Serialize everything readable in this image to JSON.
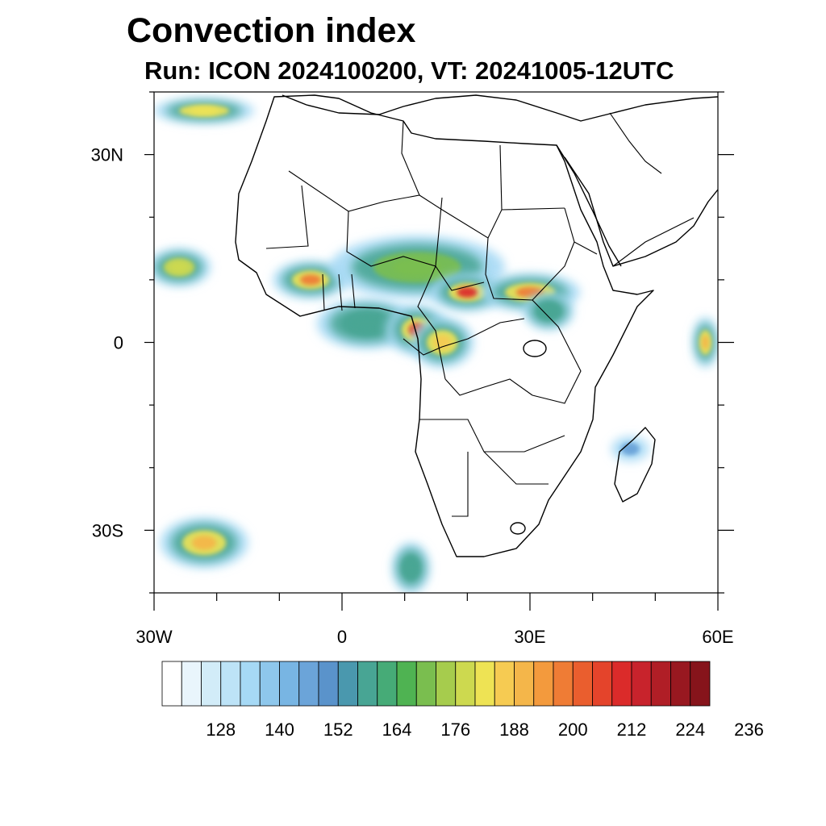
{
  "title": "Convection index",
  "subtitle": "Run: ICON 2024100200,  VT: 20241005-12UTC",
  "map": {
    "region": "Africa",
    "lon_range": [
      -30,
      60
    ],
    "lat_range": [
      -40,
      40
    ],
    "lat_ticks": [
      {
        "value": 30,
        "label": "30N"
      },
      {
        "value": 0,
        "label": "0"
      },
      {
        "value": -30,
        "label": "30S"
      }
    ],
    "lon_ticks": [
      {
        "value": -30,
        "label": "30W"
      },
      {
        "value": 0,
        "label": "0"
      },
      {
        "value": 30,
        "label": "30E"
      },
      {
        "value": 60,
        "label": "60E"
      }
    ],
    "minor_lat_ticks": [
      40,
      20,
      10,
      -10,
      -20,
      -40
    ],
    "minor_lon_ticks": [
      -20,
      -10,
      10,
      20,
      40,
      50
    ],
    "convection_areas": [
      {
        "name": "west-africa-core",
        "lon": -5,
        "lat": 10,
        "rlon": 6,
        "rlat": 3,
        "level": 190
      },
      {
        "name": "sahel-band",
        "lon": 12,
        "lat": 12,
        "rlon": 14,
        "rlat": 5,
        "level": 165
      },
      {
        "name": "gulf-of-guinea",
        "lon": 4,
        "lat": 3,
        "rlon": 8,
        "rlat": 4,
        "level": 150
      },
      {
        "name": "cameroon-gabon",
        "lon": 12,
        "lat": 2,
        "rlon": 5,
        "rlat": 4,
        "level": 200
      },
      {
        "name": "congo",
        "lon": 16,
        "lat": 0,
        "rlon": 5,
        "rlat": 4,
        "level": 180
      },
      {
        "name": "central-african-rep",
        "lon": 20,
        "lat": 8,
        "rlon": 6,
        "rlat": 3,
        "level": 205
      },
      {
        "name": "south-sudan-ethiopia",
        "lon": 30,
        "lat": 8,
        "rlon": 8,
        "rlat": 3,
        "level": 190
      },
      {
        "name": "east-africa",
        "lon": 33,
        "lat": 5,
        "rlon": 4,
        "rlat": 3,
        "level": 150
      },
      {
        "name": "atlantic-storm",
        "lon": -26,
        "lat": 12,
        "rlon": 5,
        "rlat": 3,
        "level": 170
      },
      {
        "name": "atlantic-jet-north",
        "lon": -22,
        "lat": 37,
        "rlon": 8,
        "rlat": 2,
        "level": 175
      },
      {
        "name": "south-atlantic-band",
        "lon": -22,
        "lat": -32,
        "rlon": 7,
        "rlat": 4,
        "level": 185
      },
      {
        "name": "indian-ocean-east",
        "lon": 58,
        "lat": 0,
        "rlon": 2,
        "rlat": 4,
        "level": 185
      },
      {
        "name": "south-africa-front",
        "lon": 11,
        "lat": -36,
        "rlon": 3,
        "rlat": 4,
        "level": 150
      },
      {
        "name": "madagascar-channel",
        "lon": 46,
        "lat": -17,
        "rlon": 3,
        "rlat": 2,
        "level": 140
      }
    ]
  },
  "colorbar": {
    "labels": [
      "128",
      "140",
      "152",
      "164",
      "176",
      "188",
      "200",
      "212",
      "224",
      "236"
    ],
    "colors": [
      "#ffffff",
      "#e9f5fc",
      "#d2ecf8",
      "#bde3f7",
      "#a6d9f5",
      "#8ec7ec",
      "#78b5e3",
      "#6ba4d9",
      "#5a93cb",
      "#4a98ae",
      "#48a594",
      "#46ab77",
      "#4fb352",
      "#7abe4f",
      "#a6cc4d",
      "#cdd94f",
      "#eee354",
      "#f6cb52",
      "#f4b64a",
      "#f39a3d",
      "#ef7c35",
      "#ea5e2e",
      "#e4442b",
      "#db2b2a",
      "#c8232c",
      "#b01e26",
      "#981820",
      "#86141b"
    ]
  }
}
